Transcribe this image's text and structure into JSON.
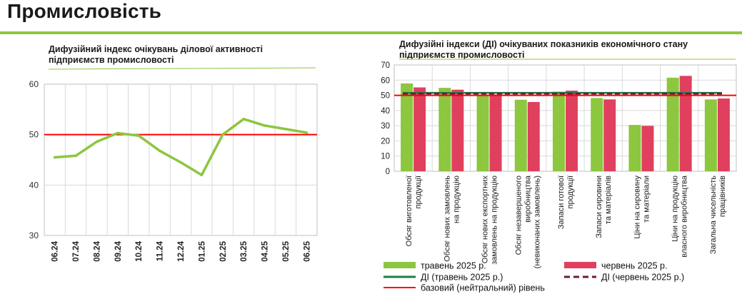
{
  "header": {
    "title": "Промисловість"
  },
  "chart_data": [
    {
      "type": "line",
      "title": "Дифузійний індекс очікувань ділової активності підприємств промисловості",
      "categories": [
        "06.24",
        "07.24",
        "08.24",
        "09.24",
        "10.24",
        "11.24",
        "12.24",
        "01.25",
        "02.25",
        "03.25",
        "04.25",
        "05.25",
        "06.25"
      ],
      "series": [
        {
          "name": "ДІ",
          "values": [
            45.5,
            45.8,
            48.6,
            50.3,
            49.8,
            46.8,
            44.5,
            42.0,
            50.0,
            53.1,
            51.8,
            51.1,
            50.4
          ],
          "color": "#8dc63f"
        }
      ],
      "reference_line": {
        "value": 50,
        "color": "#ff0000"
      },
      "ylim": [
        30,
        60
      ],
      "yticks": [
        30,
        40,
        50,
        60
      ],
      "grid": true
    },
    {
      "type": "bar",
      "title": "Дифузійні індекси (ДІ) очікуваних показників економічного стану підприємств промисловості",
      "categories": [
        "Обсяг виготовленої продукції",
        "Обсяг нових замовлень на продукцію",
        "Обсяг нових експортних замовлень на продукцію",
        "Обсяг незавершеного виробництва (невиконаних замовлень)",
        "Запаси готової продукції",
        "Запаси сировини та матеріалів",
        "Ціни на сировину та матеріали",
        "Ціни на продукцію власного виробництва",
        "Загальна чисельність працівників"
      ],
      "category_lines": [
        [
          "Обсяг виготовленої",
          "продукції"
        ],
        [
          "Обсяг нових замовлень",
          "на продукцію"
        ],
        [
          "Обсяг нових експортних",
          "замовлень на продукцію"
        ],
        [
          "Обсяг незавершеного",
          "виробництва",
          "(невиконаних замовлень)"
        ],
        [
          "Запаси готової",
          "продукції"
        ],
        [
          "Запаси сировини",
          "та матеріалів"
        ],
        [
          "Ціни на сировину",
          "та матеріали"
        ],
        [
          "Ціни на продукцію",
          "власного виробництва"
        ],
        [
          "Загальна чисельність",
          "працівників"
        ]
      ],
      "series": [
        {
          "name": "травень 2025 р.",
          "values": [
            57.8,
            54.9,
            50.2,
            47.1,
            52.4,
            48.2,
            30.5,
            61.6,
            47.3
          ],
          "color": "#8dc63f"
        },
        {
          "name": "червень 2025 р.",
          "values": [
            55.2,
            53.7,
            50.4,
            45.6,
            53.1,
            47.3,
            29.9,
            62.8,
            47.9
          ],
          "color": "#e0405e"
        }
      ],
      "lines": [
        {
          "name": "ДІ (травень 2025 р.)",
          "value": 51.6,
          "color": "#1f7a4d",
          "style": "solid"
        },
        {
          "name": "ДІ (червень 2025 р.)",
          "value": 51.1,
          "color": "#6d1a3a",
          "style": "dashed"
        },
        {
          "name": "базовий (нейтральний) рівень",
          "value": 50,
          "color": "#ff0000",
          "style": "solid"
        }
      ],
      "ylim": [
        0,
        70
      ],
      "yticks": [
        0,
        10,
        20,
        30,
        40,
        50,
        60,
        70
      ],
      "grid": true,
      "legend": "bottom"
    }
  ]
}
